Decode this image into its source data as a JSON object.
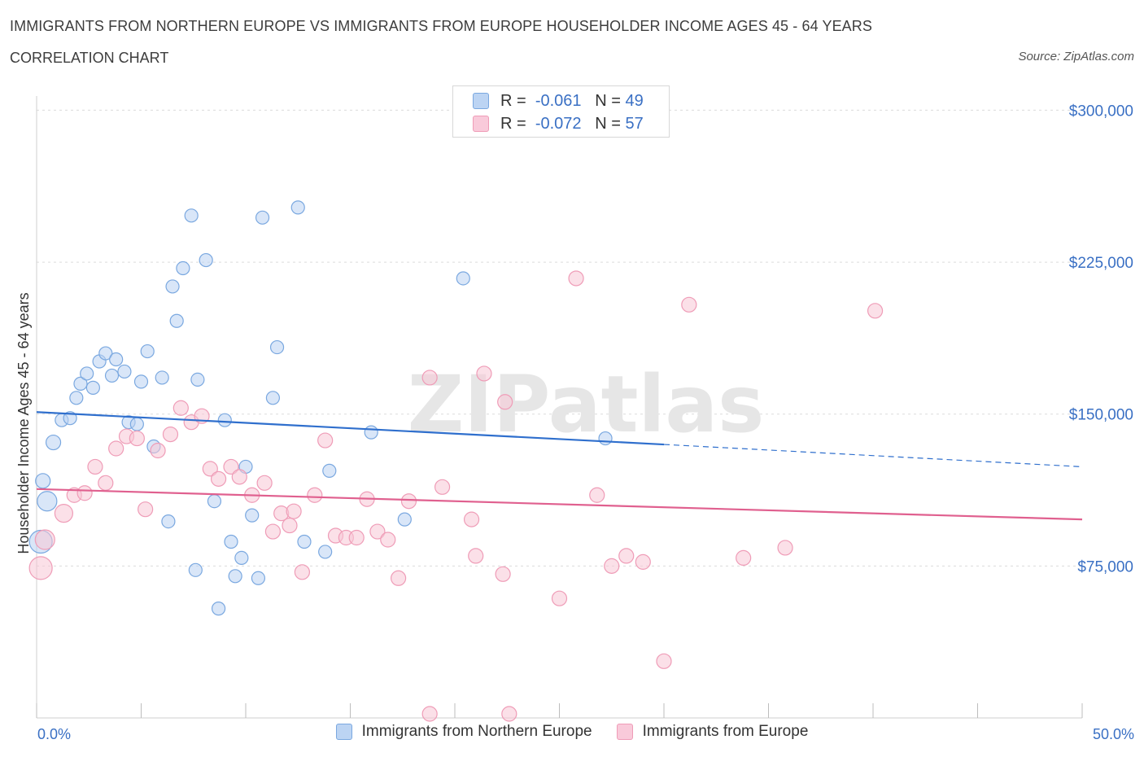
{
  "header": {
    "title": "IMMIGRANTS FROM NORTHERN EUROPE VS IMMIGRANTS FROM EUROPE HOUSEHOLDER INCOME AGES 45 - 64 YEARS",
    "subtitle": "CORRELATION CHART",
    "source": "Source: ZipAtlas.com"
  },
  "watermark": "ZIPatlas",
  "legend": {
    "rows": [
      {
        "r_label": "R =",
        "r_value": "-0.061",
        "n_label": "N =",
        "n_value": "49",
        "color": "#a9c8f0"
      },
      {
        "r_label": "R =",
        "r_value": "-0.072",
        "n_label": "N =",
        "n_value": "57",
        "color": "#f5b7cb"
      }
    ]
  },
  "chart_data": {
    "type": "scatter",
    "ylabel": "Householder Income Ages 45 - 64 years",
    "xlabel": "",
    "xlim": [
      0,
      50
    ],
    "ylim": [
      0,
      300000
    ],
    "x_tick_labels": [
      "0.0%",
      "50.0%"
    ],
    "y_ticks": [
      75000,
      150000,
      225000,
      300000
    ],
    "y_tick_labels": [
      "$75,000",
      "$150,000",
      "$225,000",
      "$300,000"
    ],
    "grid": true,
    "legend_position": "bottom",
    "series": [
      {
        "name": "Immigrants from Northern Europe",
        "color": "#7aa8e0",
        "fill": "#b9d2f2",
        "trend": {
          "x0": 0,
          "y0": 151000,
          "x1": 30,
          "y1": 135000,
          "dash_to_x": 50,
          "dash_to_y": 124000,
          "color": "#2f6fcd"
        },
        "points": [
          [
            0.3,
            117000,
            9
          ],
          [
            0.5,
            107000,
            12
          ],
          [
            0.2,
            87000,
            14
          ],
          [
            0.8,
            136000,
            9
          ],
          [
            1.2,
            147000,
            8
          ],
          [
            1.6,
            148000,
            8
          ],
          [
            1.9,
            158000,
            8
          ],
          [
            2.1,
            165000,
            8
          ],
          [
            2.4,
            170000,
            8
          ],
          [
            2.7,
            163000,
            8
          ],
          [
            3.0,
            176000,
            8
          ],
          [
            3.3,
            180000,
            8
          ],
          [
            3.6,
            169000,
            8
          ],
          [
            3.8,
            177000,
            8
          ],
          [
            4.2,
            171000,
            8
          ],
          [
            4.4,
            146000,
            8
          ],
          [
            4.8,
            145000,
            8
          ],
          [
            5.0,
            166000,
            8
          ],
          [
            5.3,
            181000,
            8
          ],
          [
            5.6,
            134000,
            8
          ],
          [
            6.0,
            168000,
            8
          ],
          [
            6.3,
            97000,
            8
          ],
          [
            6.5,
            213000,
            8
          ],
          [
            6.7,
            196000,
            8
          ],
          [
            7.0,
            222000,
            8
          ],
          [
            7.4,
            248000,
            8
          ],
          [
            7.6,
            73000,
            8
          ],
          [
            7.7,
            167000,
            8
          ],
          [
            8.1,
            226000,
            8
          ],
          [
            8.5,
            107000,
            8
          ],
          [
            8.7,
            54000,
            8
          ],
          [
            9.0,
            147000,
            8
          ],
          [
            9.3,
            87000,
            8
          ],
          [
            9.5,
            70000,
            8
          ],
          [
            9.8,
            79000,
            8
          ],
          [
            10.0,
            124000,
            8
          ],
          [
            10.3,
            100000,
            8
          ],
          [
            10.6,
            69000,
            8
          ],
          [
            10.8,
            247000,
            8
          ],
          [
            11.3,
            158000,
            8
          ],
          [
            11.5,
            183000,
            8
          ],
          [
            12.5,
            252000,
            8
          ],
          [
            12.8,
            87000,
            8
          ],
          [
            13.8,
            82000,
            8
          ],
          [
            14.0,
            122000,
            8
          ],
          [
            16.0,
            141000,
            8
          ],
          [
            17.6,
            98000,
            8
          ],
          [
            20.4,
            217000,
            8
          ],
          [
            27.2,
            138000,
            8
          ]
        ]
      },
      {
        "name": "Immigrants from Europe",
        "color": "#ef9cb7",
        "fill": "#f8c6d6",
        "trend": {
          "x0": 0,
          "y0": 113000,
          "x1": 50,
          "y1": 98000,
          "color": "#e0608f"
        },
        "points": [
          [
            0.2,
            74000,
            14
          ],
          [
            0.4,
            88000,
            12
          ],
          [
            1.3,
            101000,
            11
          ],
          [
            1.8,
            110000,
            9
          ],
          [
            2.3,
            111000,
            9
          ],
          [
            2.8,
            124000,
            9
          ],
          [
            3.3,
            116000,
            9
          ],
          [
            3.8,
            133000,
            9
          ],
          [
            4.3,
            139000,
            9
          ],
          [
            4.8,
            138000,
            9
          ],
          [
            5.2,
            103000,
            9
          ],
          [
            5.8,
            132000,
            9
          ],
          [
            6.4,
            140000,
            9
          ],
          [
            6.9,
            153000,
            9
          ],
          [
            7.4,
            146000,
            9
          ],
          [
            7.9,
            149000,
            9
          ],
          [
            8.3,
            123000,
            9
          ],
          [
            8.7,
            118000,
            9
          ],
          [
            9.3,
            124000,
            9
          ],
          [
            9.7,
            119000,
            9
          ],
          [
            10.3,
            110000,
            9
          ],
          [
            10.9,
            116000,
            9
          ],
          [
            11.3,
            92000,
            9
          ],
          [
            11.7,
            101000,
            9
          ],
          [
            12.3,
            102000,
            9
          ],
          [
            12.7,
            72000,
            9
          ],
          [
            13.3,
            110000,
            9
          ],
          [
            13.8,
            137000,
            9
          ],
          [
            14.3,
            90000,
            9
          ],
          [
            14.8,
            89000,
            9
          ],
          [
            15.3,
            89000,
            9
          ],
          [
            15.8,
            108000,
            9
          ],
          [
            16.3,
            92000,
            9
          ],
          [
            16.8,
            88000,
            9
          ],
          [
            17.3,
            69000,
            9
          ],
          [
            17.8,
            107000,
            9
          ],
          [
            18.8,
            168000,
            9
          ],
          [
            19.4,
            114000,
            9
          ],
          [
            20.8,
            98000,
            9
          ],
          [
            21.4,
            170000,
            9
          ],
          [
            22.4,
            156000,
            9
          ],
          [
            21.0,
            80000,
            9
          ],
          [
            22.3,
            71000,
            9
          ],
          [
            25.0,
            59000,
            9
          ],
          [
            25.8,
            217000,
            9
          ],
          [
            26.8,
            110000,
            9
          ],
          [
            27.5,
            75000,
            9
          ],
          [
            28.2,
            80000,
            9
          ],
          [
            29.0,
            77000,
            9
          ],
          [
            30.0,
            28000,
            9
          ],
          [
            31.2,
            204000,
            9
          ],
          [
            33.8,
            79000,
            9
          ],
          [
            35.8,
            84000,
            9
          ],
          [
            40.1,
            201000,
            9
          ],
          [
            18.8,
            2000,
            9
          ],
          [
            22.6,
            2000,
            9
          ],
          [
            12.1,
            95000,
            9
          ]
        ]
      }
    ]
  }
}
